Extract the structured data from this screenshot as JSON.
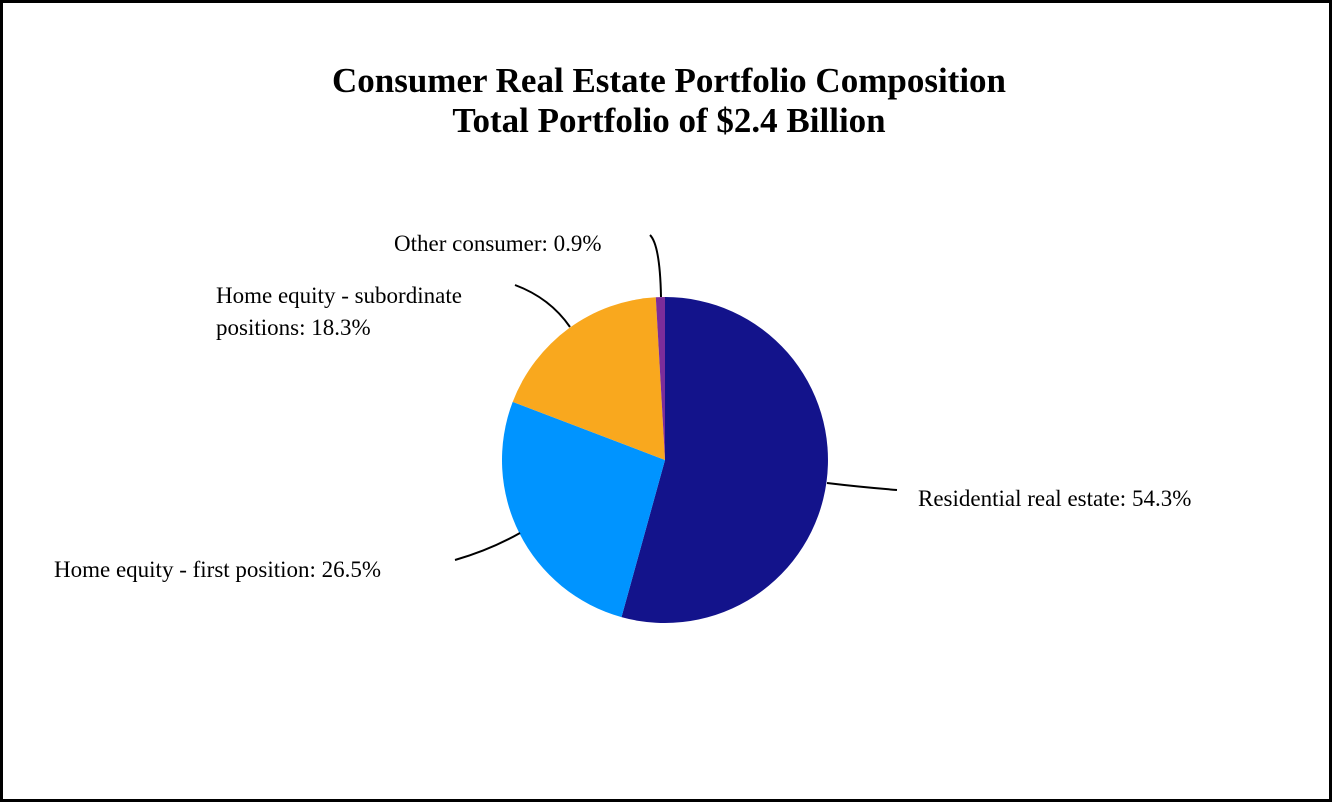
{
  "chart_data": {
    "type": "pie",
    "title": "Consumer Real Estate Portfolio Composition",
    "subtitle": "Total Portfolio of $2.4 Billion",
    "slices": [
      {
        "name": "Residential real estate",
        "value": 54.3,
        "label": "Residential real estate: 54.3%",
        "color": "#13138b"
      },
      {
        "name": "Home equity - first position",
        "value": 26.5,
        "label": "Home equity - first position: 26.5%",
        "color": "#0094ff"
      },
      {
        "name": "Home equity - subordinate positions",
        "value": 18.3,
        "label_lines": [
          "Home equity - subordinate",
          "positions: 18.3%"
        ],
        "color": "#f9a81e"
      },
      {
        "name": "Other consumer",
        "value": 0.9,
        "label": "Other consumer: 0.9%",
        "color": "#7b2d9a"
      }
    ],
    "start_angle": "12 o'clock",
    "direction": "clockwise",
    "legend": "none"
  }
}
